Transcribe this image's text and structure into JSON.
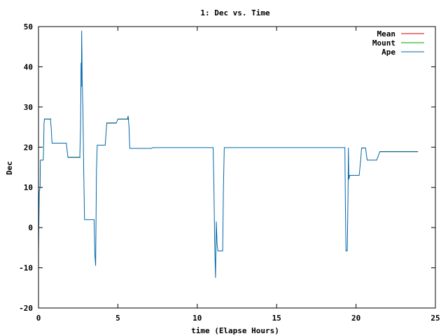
{
  "chart_data": {
    "type": "line",
    "title": "1: Dec vs. Time",
    "xlabel": "time (Elapse Hours)",
    "ylabel": "Dec",
    "xlim": [
      0,
      25
    ],
    "ylim": [
      -20,
      50
    ],
    "xticks": [
      0,
      5,
      10,
      15,
      20,
      25
    ],
    "yticks": [
      -20,
      -10,
      0,
      10,
      20,
      30,
      40,
      50
    ],
    "grid": false,
    "legend_position": "top-right",
    "series": [
      {
        "name": "Mean",
        "color": "#cc0000",
        "segments": [
          [
            [
              0.35,
              27.0
            ],
            [
              0.8,
              27.0
            ]
          ],
          [
            [
              0.85,
              21.0
            ],
            [
              1.75,
              21.0
            ]
          ],
          [
            [
              1.85,
              17.5
            ],
            [
              2.65,
              17.5
            ]
          ],
          [
            [
              4.3,
              26.0
            ],
            [
              4.9,
              26.0
            ]
          ],
          [
            [
              5.0,
              27.0
            ],
            [
              5.7,
              27.0
            ]
          ],
          [
            [
              5.75,
              19.7
            ],
            [
              7.05,
              19.7
            ]
          ],
          [
            [
              11.3,
              -5.8
            ],
            [
              11.6,
              -5.8
            ]
          ],
          [
            [
              19.35,
              -5.8
            ],
            [
              19.45,
              -5.8
            ]
          ],
          [
            [
              20.35,
              19.8
            ],
            [
              20.6,
              19.8
            ]
          ],
          [
            [
              21.5,
              18.9
            ],
            [
              23.9,
              18.9
            ]
          ]
        ]
      },
      {
        "name": "Mount",
        "color": "#00a000",
        "segments": [
          [
            [
              0.35,
              27.0
            ],
            [
              0.8,
              27.0
            ]
          ],
          [
            [
              0.85,
              21.0
            ],
            [
              1.75,
              21.0
            ]
          ],
          [
            [
              1.85,
              17.5
            ],
            [
              2.65,
              17.5
            ]
          ],
          [
            [
              4.3,
              26.0
            ],
            [
              4.9,
              26.0
            ]
          ],
          [
            [
              5.0,
              27.0
            ],
            [
              5.7,
              27.0
            ]
          ],
          [
            [
              5.75,
              19.7
            ],
            [
              7.05,
              19.7
            ]
          ],
          [
            [
              21.5,
              18.9
            ],
            [
              23.9,
              18.9
            ]
          ]
        ]
      },
      {
        "name": "Ape",
        "color": "#0066aa",
        "points": [
          [
            0.0,
            -6.0
          ],
          [
            0.05,
            9.0
          ],
          [
            0.1,
            10.0
          ],
          [
            0.12,
            16.8
          ],
          [
            0.3,
            16.8
          ],
          [
            0.32,
            20.0
          ],
          [
            0.35,
            26.0
          ],
          [
            0.38,
            27.0
          ],
          [
            0.75,
            27.0
          ],
          [
            0.8,
            25.0
          ],
          [
            0.85,
            21.0
          ],
          [
            1.75,
            21.0
          ],
          [
            1.85,
            17.5
          ],
          [
            2.6,
            17.5
          ],
          [
            2.65,
            25.0
          ],
          [
            2.68,
            41.0
          ],
          [
            2.7,
            35.0
          ],
          [
            2.72,
            49.0
          ],
          [
            2.75,
            37.0
          ],
          [
            2.8,
            29.0
          ],
          [
            2.85,
            14.0
          ],
          [
            2.9,
            2.0
          ],
          [
            3.5,
            2.0
          ],
          [
            3.55,
            -6.5
          ],
          [
            3.6,
            -9.5
          ],
          [
            3.65,
            14.0
          ],
          [
            3.7,
            20.5
          ],
          [
            4.2,
            20.5
          ],
          [
            4.3,
            26.0
          ],
          [
            4.9,
            26.0
          ],
          [
            5.0,
            27.0
          ],
          [
            5.6,
            27.0
          ],
          [
            5.65,
            27.8
          ],
          [
            5.7,
            25.0
          ],
          [
            5.75,
            19.7
          ],
          [
            7.1,
            19.7
          ],
          [
            7.2,
            19.9
          ],
          [
            11.0,
            19.9
          ],
          [
            11.05,
            10.0
          ],
          [
            11.1,
            -4.0
          ],
          [
            11.15,
            -12.5
          ],
          [
            11.2,
            1.5
          ],
          [
            11.25,
            -4.0
          ],
          [
            11.3,
            -5.8
          ],
          [
            11.6,
            -5.8
          ],
          [
            11.65,
            10.0
          ],
          [
            11.7,
            19.9
          ],
          [
            19.3,
            19.9
          ],
          [
            19.33,
            6.0
          ],
          [
            19.37,
            -5.8
          ],
          [
            19.45,
            -5.8
          ],
          [
            19.5,
            10.0
          ],
          [
            19.52,
            19.9
          ],
          [
            19.55,
            12.0
          ],
          [
            19.6,
            13.0
          ],
          [
            20.2,
            13.0
          ],
          [
            20.3,
            17.0
          ],
          [
            20.35,
            19.8
          ],
          [
            20.6,
            19.8
          ],
          [
            20.7,
            16.8
          ],
          [
            21.3,
            16.8
          ],
          [
            21.5,
            18.9
          ],
          [
            23.9,
            18.9
          ]
        ]
      }
    ]
  }
}
